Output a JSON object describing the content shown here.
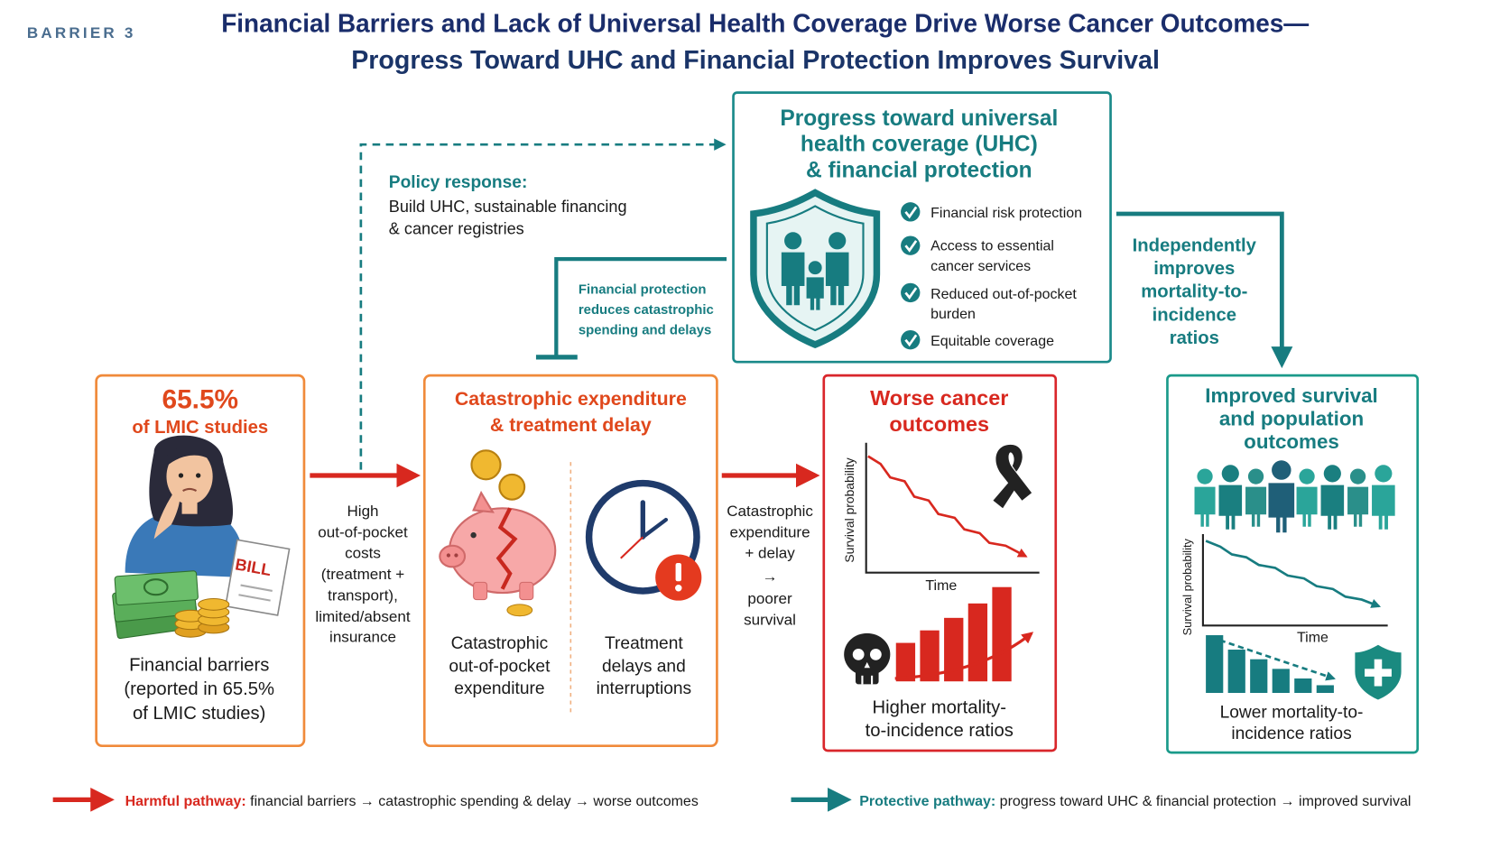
{
  "header": {
    "label": "BARRIER 3",
    "title": [
      "Financial Barriers and Lack of Universal Health Coverage Drive Worse Cancer Outcomes—",
      "Progress Toward UHC and Financial Protection Improves Survival"
    ]
  },
  "policy": {
    "heading": "Policy response:",
    "lines": [
      "Build UHC, sustainable financing",
      "& cancer registries"
    ]
  },
  "uhc": {
    "title": [
      "Progress toward universal",
      "health coverage (UHC)",
      "& financial protection"
    ],
    "items": [
      [
        "Financial risk protection"
      ],
      [
        "Access to essential",
        "cancer services"
      ],
      [
        "Reduced out-of-pocket",
        "burden"
      ],
      [
        "Equitable coverage"
      ]
    ]
  },
  "feedback_label": [
    "Financial protection",
    "reduces catastrophic",
    "spending and delays"
  ],
  "independent_label": [
    "Independently",
    "improves",
    "mortality-to-",
    "incidence",
    "ratios"
  ],
  "nodes": [
    {
      "stat": "65.5%",
      "stat_label": "of LMIC studies",
      "bill": "BILL",
      "caption": [
        "Financial barriers",
        "(reported in 65.5%",
        "of LMIC studies)"
      ]
    },
    {
      "title": [
        "Catastrophic expenditure",
        "& treatment delay"
      ],
      "left_caption": [
        "Catastrophic",
        "out-of-pocket",
        "expenditure"
      ],
      "right_caption": [
        "Treatment",
        "delays and",
        "interruptions"
      ]
    },
    {
      "title": [
        "Worse cancer",
        "outcomes"
      ],
      "y_label": "Survival probability",
      "x_label": "Time",
      "caption": [
        "Higher mortality-",
        "to-incidence ratios"
      ]
    },
    {
      "title": [
        "Improved survival",
        "and population",
        "outcomes"
      ],
      "y_label": "Survival probability",
      "x_label": "Time",
      "caption": [
        "Lower mortality-to-",
        "incidence ratios"
      ]
    }
  ],
  "arrows": [
    {
      "label": [
        "High",
        "out-of-pocket",
        "costs",
        "(treatment +",
        "transport),",
        "limited/absent",
        "insurance"
      ]
    },
    {
      "label": [
        "Catastrophic",
        "expenditure",
        "+ delay",
        "→",
        "poorer",
        "survival"
      ]
    }
  ],
  "legend": {
    "harmful": {
      "label": "Harmful pathway:",
      "text": " financial barriers → catastrophic spending & delay → worse outcomes"
    },
    "protective": {
      "label": "Protective pathway:",
      "text": " progress toward UHC & financial protection → improved survival"
    }
  }
}
